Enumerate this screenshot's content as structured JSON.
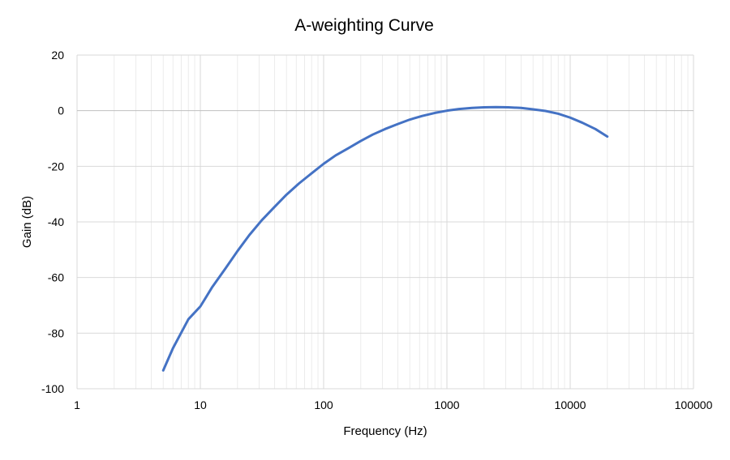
{
  "chart_data": {
    "type": "line",
    "title": "A-weighting Curve",
    "xlabel": "Frequency (Hz)",
    "ylabel": "Gain (dB)",
    "x_scale": "log",
    "xlim": [
      1,
      100000
    ],
    "ylim": [
      -100,
      20
    ],
    "x_ticks": [
      1,
      10,
      100,
      1000,
      10000,
      100000
    ],
    "x_tick_labels": [
      "1",
      "10",
      "100",
      "1000",
      "10000",
      "100000"
    ],
    "y_ticks": [
      20,
      0,
      -20,
      -40,
      -60,
      -80,
      -100
    ],
    "y_tick_labels": [
      "20",
      "0",
      "-20",
      "-40",
      "-60",
      "-80",
      "-100"
    ],
    "grid": true,
    "minor_grid_x": true,
    "legend": "none",
    "colors": {
      "series": "#4472C4",
      "grid_major": "#d9d9d9",
      "grid_minor": "#ececec",
      "zero_line": "#bfbfbf"
    },
    "series": [
      {
        "x": [
          5,
          6,
          8,
          10,
          12.5,
          16,
          20,
          25,
          31.5,
          40,
          50,
          63,
          80,
          100,
          125,
          160,
          200,
          250,
          315,
          400,
          500,
          630,
          800,
          1000,
          1250,
          1600,
          2000,
          2500,
          3150,
          4000,
          5000,
          6300,
          8000,
          10000,
          12500,
          16000,
          20000
        ],
        "y": [
          -93.4,
          -85.4,
          -75.0,
          -70.4,
          -63.4,
          -56.7,
          -50.5,
          -44.7,
          -39.4,
          -34.6,
          -30.2,
          -26.2,
          -22.5,
          -19.1,
          -16.1,
          -13.4,
          -10.9,
          -8.6,
          -6.6,
          -4.8,
          -3.2,
          -1.9,
          -0.8,
          0.0,
          0.6,
          1.0,
          1.2,
          1.3,
          1.2,
          1.0,
          0.5,
          -0.1,
          -1.1,
          -2.5,
          -4.3,
          -6.6,
          -9.3
        ]
      }
    ]
  }
}
